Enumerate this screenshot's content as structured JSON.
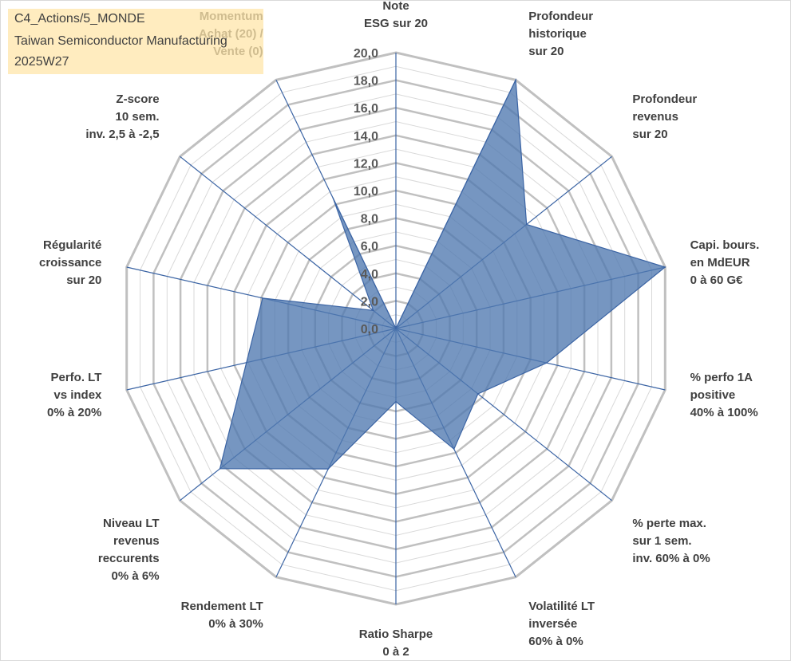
{
  "title_box": {
    "line1": "C4_Actions/5_MONDE",
    "line2": "Taiwan Semiconductor Manufacturing",
    "line3": "2025W27"
  },
  "colors": {
    "fill": "#4f78b0",
    "stroke": "#3b64a4",
    "spoke": "#3b64a4",
    "grid": "#c0c0c0",
    "gridMinor": "#d9d9d9",
    "titleBox": "#ffe6aa"
  },
  "chart_data": {
    "type": "radar",
    "rlim": [
      0,
      20
    ],
    "grid": true,
    "ticks": [
      "0,0",
      "2,0",
      "4,0",
      "6,0",
      "8,0",
      "10,0",
      "12,0",
      "14,0",
      "16,0",
      "18,0",
      "20,0"
    ],
    "categories": [
      [
        "Note",
        "ESG sur 20"
      ],
      [
        "Profondeur",
        "historique",
        "sur 20"
      ],
      [
        "Profondeur",
        "revenus",
        "sur 20"
      ],
      [
        "Capi. bours.",
        "en MdEUR",
        "0 à 60 G€"
      ],
      [
        "% perfo 1A",
        "positive",
        "40% à 100%"
      ],
      [
        "% perte max.",
        "sur 1 sem.",
        "inv. 60% à 0%"
      ],
      [
        "Volatilité LT",
        "inversée",
        "60% à 0%"
      ],
      [
        "Ratio Sharpe",
        "0 à 2"
      ],
      [
        "Rendement LT",
        "0% à 30%"
      ],
      [
        "Niveau LT",
        "revenus",
        "reccurents",
        "0% à 6%"
      ],
      [
        "Perfo. LT",
        "vs index",
        "0% à 20%"
      ],
      [
        "Régularité",
        "croissance",
        "sur 20"
      ],
      [
        "Z-score",
        "10 sem.",
        "inv. 2,5 à -2,5"
      ],
      [
        "Momentum",
        "Achat (20) /",
        "Vente (0)"
      ]
    ],
    "values": [
      0,
      20,
      12.1,
      20,
      11.2,
      7.6,
      9.7,
      5.3,
      11.3,
      16.3,
      11.1,
      9.9,
      2.1,
      10.5
    ]
  }
}
